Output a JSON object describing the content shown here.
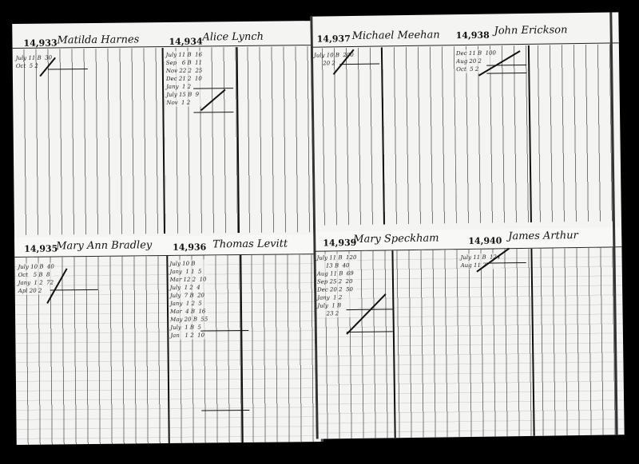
{
  "ledger": {
    "left_page": {
      "accounts": [
        {
          "number": "14,933",
          "name": "Matilda Harnes",
          "entries": "July 11 B  30\nOct  5 2"
        },
        {
          "number": "14,934",
          "name": "Alice Lynch",
          "entries": "July 11 B  16\nSep   6 B  11\nNov 22 2  25\nDec 21 2  10\nJany  1 2\nJuly 15 B  9\nNov  1 2"
        },
        {
          "number": "14,935",
          "name": "Mary Ann Bradley",
          "entries": "July 10 B  40\nOct   5 B  8\nJany  1 2  72\nApl 20 2"
        },
        {
          "number": "14,936",
          "name": "Thomas Levitt",
          "entries": "July 10 B\nJany  1 1  5\nMar 12 2  10\nJuly  1 2  4\nJuly  7 B  20\nJany  1 2  5\nMar  4 B  16\nMay 20 B  55\nJuly  1 B  5\nJan   1 2  10"
        }
      ]
    },
    "right_page": {
      "accounts": [
        {
          "number": "14,937",
          "name": "Michael Meehan",
          "entries": "July 10 B  200\n     20 2"
        },
        {
          "number": "14,938",
          "name": "John Erickson",
          "entries": "Dec 11 B  100\nAug 20 2\nOct  5 2"
        },
        {
          "number": "14,939",
          "name": "Mary Speckham",
          "entries": "July 11 B  120\n     13 B  40\nAug 11 B  69\nSep 25 2  20\nDec 20 2  50\nJany  1 2\nJuly  1 B\n     23 2"
        },
        {
          "number": "14,940",
          "name": "James Arthur",
          "entries": "July 11 B  124\nAug 11 2"
        }
      ]
    }
  }
}
